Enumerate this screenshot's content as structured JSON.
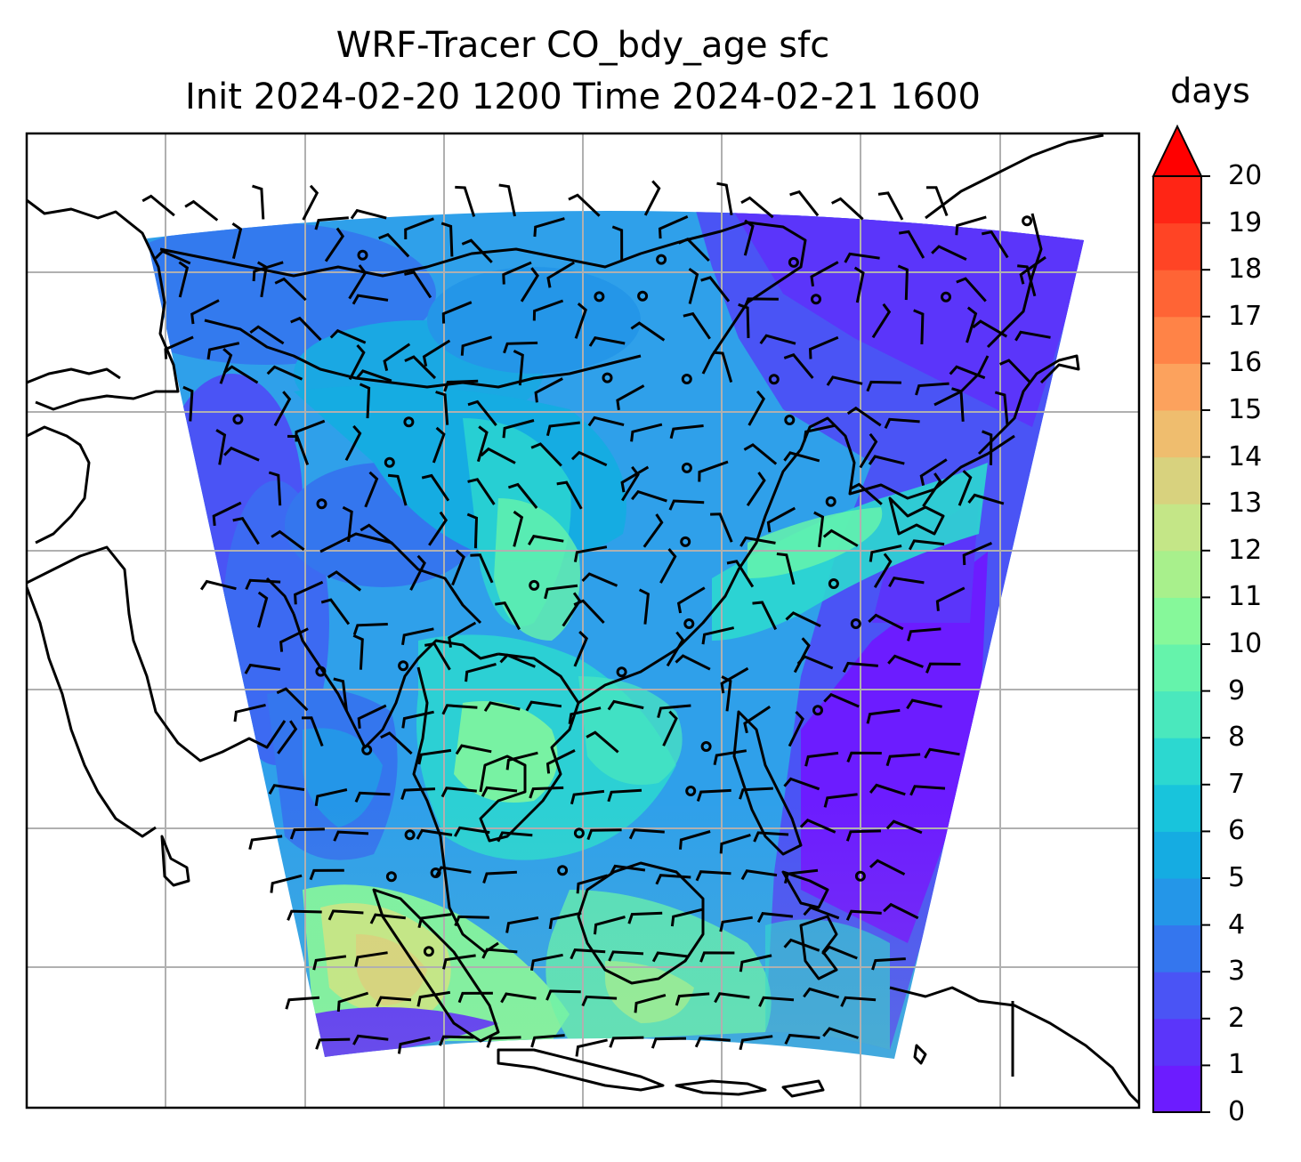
{
  "title_line1": "WRF-Tracer CO_bdy_age sfc",
  "title_line2": "Init 2024-02-20 1200 Time 2024-02-21 1600",
  "colorbar": {
    "units": "days",
    "min": 0,
    "max": 20,
    "extend": "max",
    "ticks": [
      "0",
      "1",
      "2",
      "3",
      "4",
      "5",
      "6",
      "7",
      "8",
      "9",
      "10",
      "11",
      "12",
      "13",
      "14",
      "15",
      "16",
      "17",
      "18",
      "19",
      "20"
    ],
    "colors": [
      "#6c1cff",
      "#5b35fa",
      "#4a54f5",
      "#3476ee",
      "#2496e8",
      "#15ace2",
      "#18c4dc",
      "#2cd8d0",
      "#4ae8bd",
      "#65f3ab",
      "#86f89a",
      "#a8f08c",
      "#c4e687",
      "#d8d27e",
      "#efbd6e",
      "#fca25d",
      "#ff8347",
      "#ff6435",
      "#ff4425",
      "#ff2515"
    ],
    "extend_color": "#ff0000"
  },
  "map": {
    "projection": "lambert-conformal",
    "graticule": true,
    "field": "CO_bdy_age",
    "level": "sfc",
    "wind_barbs": true
  }
}
